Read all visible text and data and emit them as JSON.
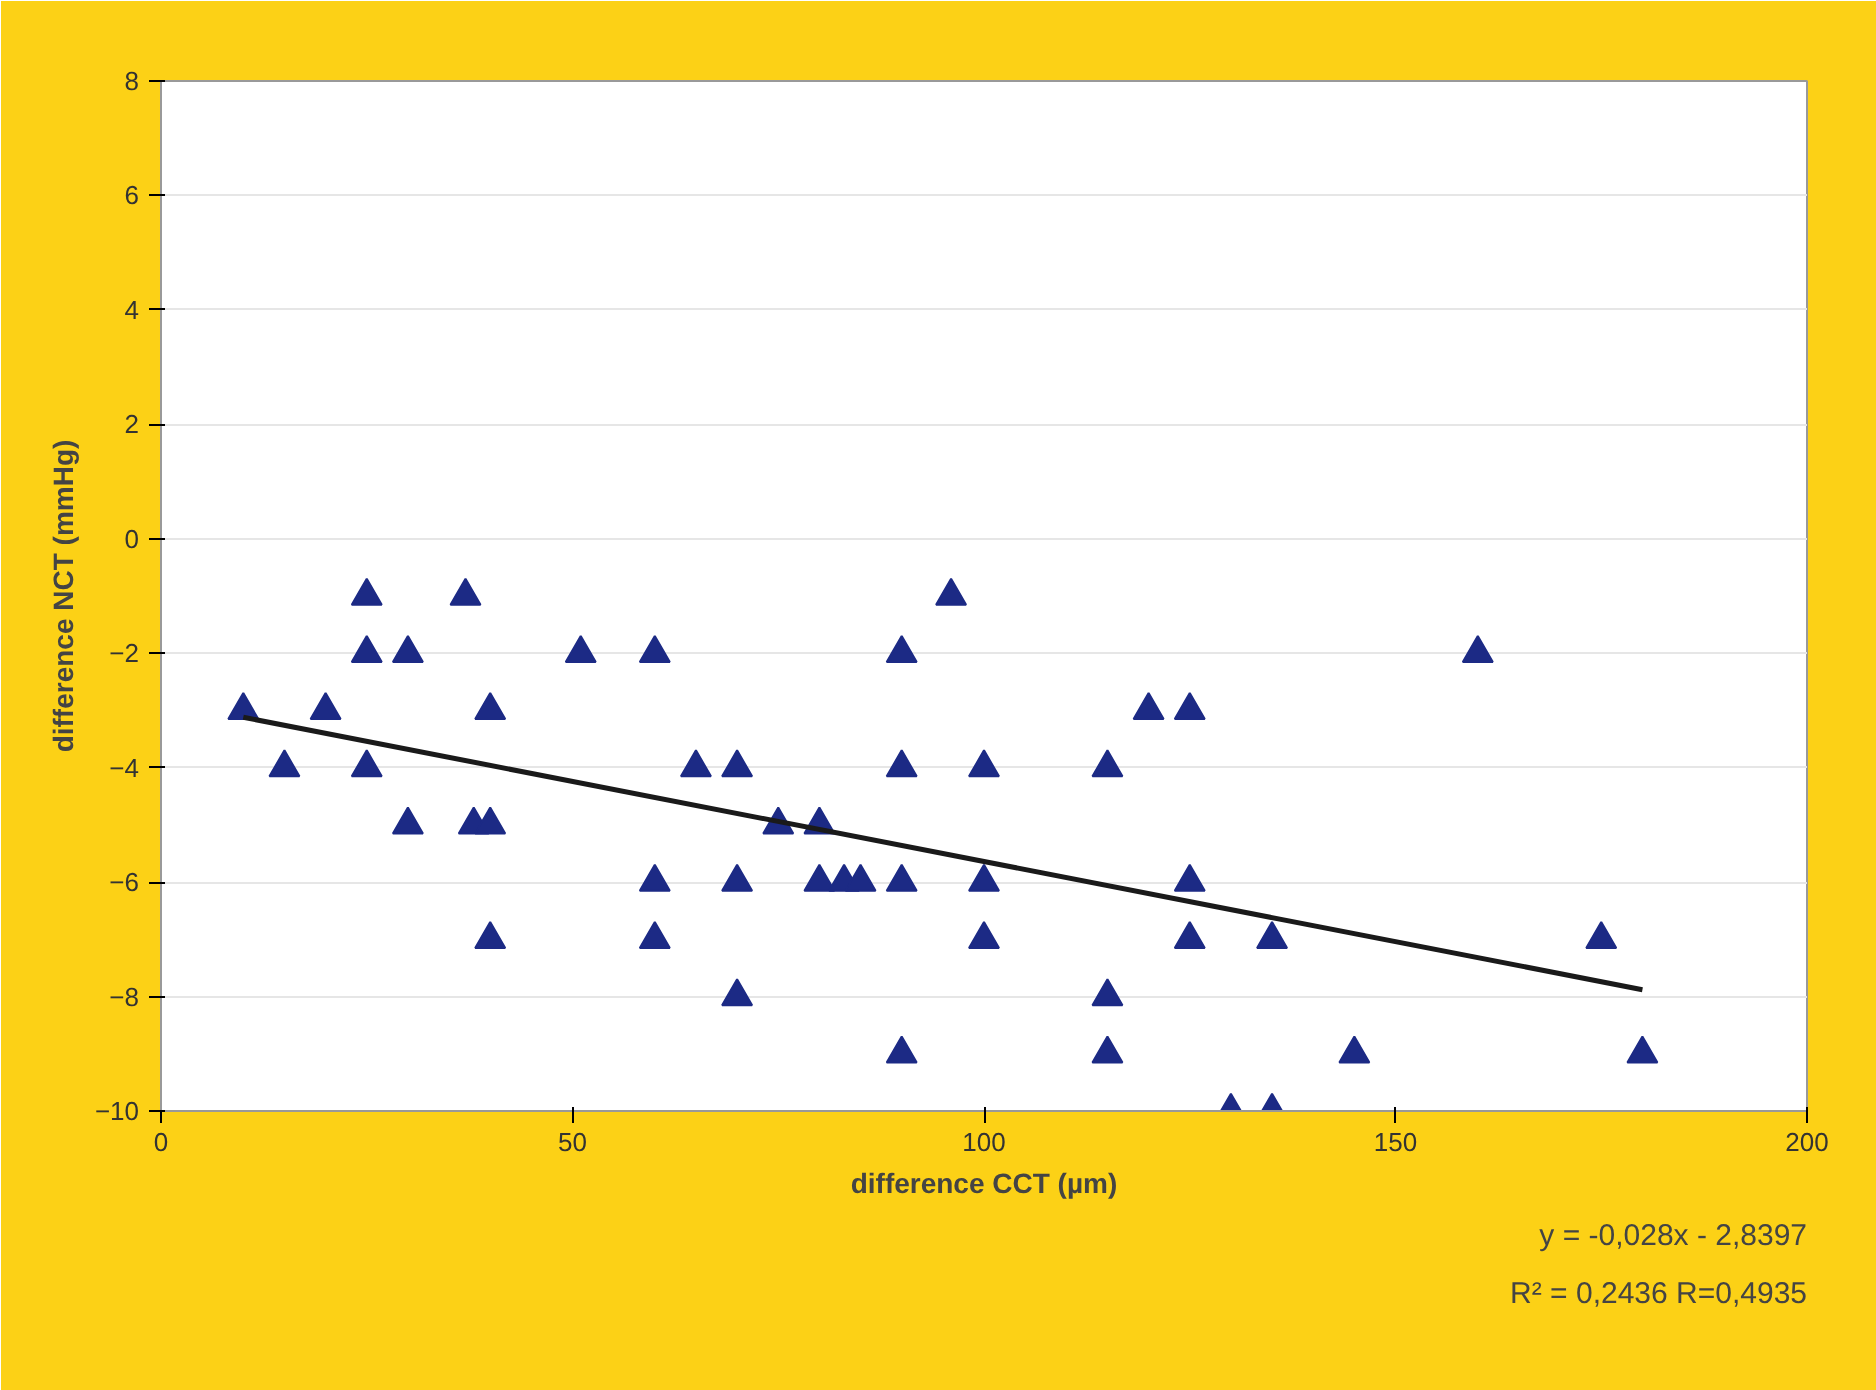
{
  "chart_data": {
    "type": "scatter",
    "xlabel": "difference CCT (µm)",
    "ylabel": "difference NCT (mmHg)",
    "xlim": [
      0,
      200
    ],
    "xticks": [
      0,
      50,
      100,
      150,
      200
    ],
    "ylim": [
      -10,
      8
    ],
    "yticks": [
      -10,
      -8,
      -6,
      -4,
      -2,
      0,
      2,
      4,
      6,
      8
    ],
    "grid": "y",
    "series": [
      {
        "marker": "triangle",
        "color": "#1c2a85",
        "x": [
          10,
          15,
          20,
          25,
          25,
          25,
          30,
          30,
          37,
          38,
          40,
          40,
          40,
          51,
          60,
          60,
          60,
          65,
          70,
          70,
          70,
          75,
          80,
          80,
          83,
          85,
          90,
          90,
          90,
          90,
          96,
          100,
          100,
          100,
          115,
          115,
          115,
          120,
          125,
          125,
          125,
          130,
          135,
          135,
          145,
          160,
          175,
          180
        ],
        "values": [
          -3,
          -4,
          -3,
          -1,
          -2,
          -4,
          -2,
          -5,
          -1,
          -5,
          -5,
          -3,
          -7,
          -2,
          -2,
          -6,
          -7,
          -4,
          -4,
          -6,
          -8,
          -5,
          -5,
          -6,
          -6,
          -6,
          -2,
          -4,
          -6,
          -9,
          -1,
          -4,
          -6,
          -7,
          -4,
          -8,
          -9,
          -3,
          -3,
          -6,
          -7,
          -10,
          -7,
          -10,
          -9,
          -2,
          -7,
          -9
        ]
      },
      {
        "type": "line",
        "color": "#1a1a1a",
        "x": [
          10,
          180
        ],
        "values": [
          -3.12,
          -7.88
        ]
      }
    ],
    "annotations": [
      "y = -0,028x - 2,8397",
      "R² = 0,2436 R=0,4935"
    ]
  }
}
